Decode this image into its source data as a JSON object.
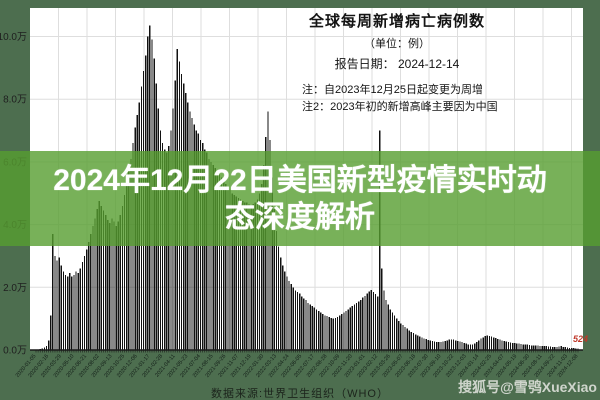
{
  "figure": {
    "title": "全球每周新增病亡病例数",
    "unit_label": "（单位：例）",
    "report_date_label": "报告日期： 2024-12-14",
    "note1": "注：自2023年12月25日起变更为周增",
    "note2": "注2：2023年初的新增高峰主要因为中国",
    "source": "数据来源:世界卫生组织（WHO）",
    "last_value_label": "524"
  },
  "overlay": {
    "title_line1": "2024年12月22日美国新型疫情实时动",
    "title_line2": "态深度解析"
  },
  "watermark": "搜狐号@雪鸮XueXiao",
  "colors": {
    "margin_green": "#4d6e4f",
    "overlay_green": "rgba(86,158,48,0.80)",
    "plot_bg": "#ffffff",
    "bar": "#111111",
    "grid": "#dedede",
    "axis": "#1a1a1a",
    "tick_text": "#1f1f1f",
    "last_label_red": "#c0392b",
    "overlay_text": "#ffffff"
  },
  "chart_data": {
    "type": "bar",
    "title": "全球每周新增病亡病例数",
    "unit": "例",
    "xlabel": "",
    "ylabel": "",
    "grid": true,
    "ylim": [
      0,
      110000
    ],
    "y_tick_labels": [
      "0.0万",
      "2.0万",
      "4.0万",
      "6.0万",
      "8.0万",
      "10.0万"
    ],
    "y_tick_values": [
      0,
      20000,
      40000,
      60000,
      80000,
      100000
    ],
    "x_tick_every_n_bars": 6,
    "x_tick_labels": [
      "2020-01-05",
      "2020-02-16",
      "2020-03-29",
      "2020-05-10",
      "2020-06-21",
      "2020-08-02",
      "2020-09-13",
      "2020-10-25",
      "2020-12-06",
      "2021-01-17",
      "2021-02-28",
      "2021-04-11",
      "2021-05-23",
      "2021-07-04",
      "2021-08-15",
      "2021-09-26",
      "2021-11-07",
      "2021-12-19",
      "2022-01-30",
      "2022-03-13",
      "2022-04-24",
      "2022-06-05",
      "2022-07-17",
      "2022-08-28",
      "2022-10-09",
      "2022-11-20",
      "2023-01-01",
      "2023-02-12",
      "2023-03-26",
      "2023-05-07",
      "2023-06-18",
      "2023-07-30",
      "2023-09-10",
      "2023-10-22",
      "2023-12-03",
      "2024-01-14",
      "2024-02-25",
      "2024-04-07",
      "2024-05-19",
      "2024-06-30",
      "2024-08-11",
      "2024-09-22",
      "2024-11-03",
      "2024-12-08"
    ],
    "values": [
      100,
      200,
      300,
      500,
      800,
      1200,
      3000,
      11000,
      37000,
      30000,
      28500,
      29500,
      27000,
      25000,
      24000,
      23500,
      24500,
      23500,
      24000,
      25000,
      24500,
      26000,
      28000,
      30000,
      32000,
      34500,
      37000,
      39500,
      42000,
      45000,
      47500,
      46000,
      44500,
      43000,
      41500,
      40500,
      42000,
      41000,
      39500,
      41000,
      43000,
      46000,
      49500,
      53000,
      57000,
      61000,
      66000,
      71000,
      75000,
      79000,
      84000,
      89000,
      94000,
      100000,
      103500,
      99000,
      93000,
      85000,
      77000,
      70000,
      66000,
      64000,
      63000,
      65000,
      70000,
      77000,
      86000,
      96000,
      92000,
      88000,
      85000,
      82000,
      79000,
      76000,
      74000,
      72000,
      70000,
      69000,
      67000,
      66000,
      64000,
      63000,
      61000,
      60000,
      59000,
      58000,
      57000,
      56000,
      55000,
      54000,
      53000,
      52000,
      51000,
      50000,
      49500,
      49000,
      48500,
      48000,
      47500,
      47000,
      47000,
      46500,
      46000,
      46500,
      47000,
      48000,
      50000,
      53000,
      59000,
      68000,
      76000,
      67000,
      55000,
      45000,
      38000,
      33000,
      29500,
      27000,
      25000,
      23500,
      22000,
      21000,
      20000,
      19000,
      18500,
      18000,
      17000,
      16500,
      16000,
      15000,
      14500,
      14000,
      13500,
      13000,
      12500,
      12000,
      11500,
      11000,
      10800,
      10500,
      10200,
      10000,
      10200,
      10500,
      11000,
      11500,
      12000,
      12500,
      13000,
      13500,
      14000,
      14500,
      15000,
      15500,
      16000,
      16700,
      17300,
      18000,
      18700,
      19200,
      18500,
      17800,
      17000,
      70000,
      26000,
      19000,
      16000,
      14500,
      13000,
      12000,
      11000,
      10000,
      9200,
      8500,
      8000,
      7400,
      6800,
      6300,
      5800,
      5400,
      5000,
      4600,
      4300,
      4000,
      3700,
      3500,
      3200,
      3000,
      2800,
      2700,
      2600,
      2500,
      2600,
      2700,
      2900,
      3100,
      3300,
      3400,
      3300,
      3100,
      2900,
      2700,
      2500,
      2200,
      2000,
      1800,
      1700,
      1800,
      2100,
      2600,
      3100,
      3600,
      4000,
      4400,
      4600,
      4500,
      4300,
      4000,
      3800,
      3500,
      3300,
      3000,
      2800,
      2700,
      2500,
      2400,
      2300,
      2200,
      2100,
      2000,
      1900,
      1800,
      1700,
      1700,
      1600,
      1500,
      1500,
      1400,
      1400,
      1300,
      1300,
      1200,
      1200,
      1100,
      1100,
      1000,
      1000,
      1000,
      1100,
      1200,
      1000,
      900,
      800,
      700,
      600,
      600,
      550,
      524
    ]
  }
}
